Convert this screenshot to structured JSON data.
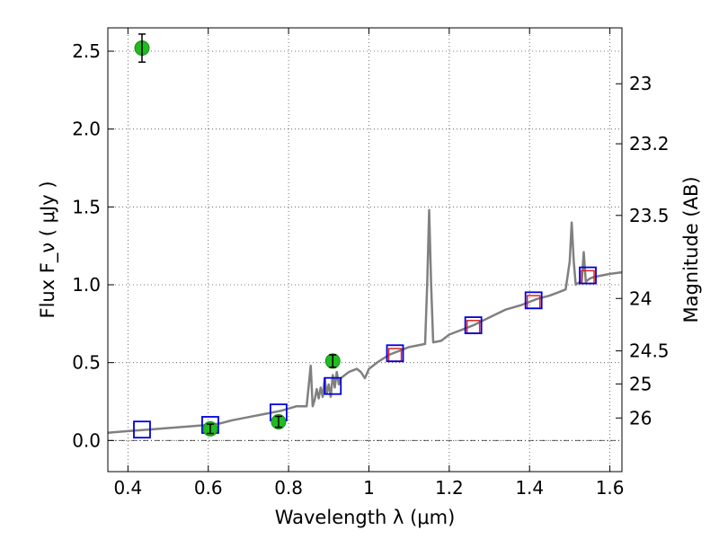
{
  "chart_data": {
    "type": "scatter",
    "xlabel": "Wavelength  λ (μm)",
    "ylabel": "Flux  F_ν  ( μJy )",
    "ylabel_right": "Magnitude (AB)",
    "xlim": [
      0.35,
      1.63
    ],
    "ylim": [
      -0.2,
      2.65
    ],
    "x_ticks": [
      0.4,
      0.6,
      0.8,
      1.0,
      1.2,
      1.4,
      1.6
    ],
    "x_tick_labels": [
      "0.4",
      "0.6",
      "0.8",
      "1",
      "1.2",
      "1.4",
      "1.6"
    ],
    "y_ticks": [
      0.0,
      0.5,
      1.0,
      1.5,
      2.0,
      2.5
    ],
    "y_tick_labels": [
      "0.0",
      "0.5",
      "1.0",
      "1.5",
      "2.0",
      "2.5"
    ],
    "mag_ticks": [
      23,
      23.2,
      23.5,
      24,
      24.5,
      25,
      26
    ],
    "mag_tick_labels": [
      "23",
      "23.2",
      "23.5",
      "24",
      "24.5",
      "25",
      "26"
    ],
    "grid": true,
    "colors": {
      "model": "#808080",
      "observed_points": "#22bb22",
      "model_photometry": "#0000dd",
      "synthetic_photometry": "#dd2222"
    },
    "series": [
      {
        "kind": "line",
        "x": [
          0.35,
          0.4,
          0.45,
          0.5,
          0.55,
          0.6,
          0.63,
          0.66,
          0.7,
          0.74,
          0.78,
          0.82,
          0.845,
          0.855,
          0.86,
          0.865,
          0.87,
          0.875,
          0.88,
          0.885,
          0.89,
          0.895,
          0.9,
          0.905,
          0.91,
          0.915,
          0.92,
          0.925,
          0.93,
          0.94,
          0.95,
          0.96,
          0.97,
          0.98,
          0.99,
          1.0,
          1.02,
          1.05,
          1.08,
          1.1,
          1.12,
          1.14,
          1.145,
          1.15,
          1.155,
          1.16,
          1.18,
          1.2,
          1.23,
          1.26,
          1.3,
          1.34,
          1.38,
          1.42,
          1.45,
          1.47,
          1.49,
          1.5,
          1.505,
          1.51,
          1.515,
          1.52,
          1.53,
          1.535,
          1.54,
          1.545,
          1.55,
          1.56,
          1.58,
          1.6,
          1.63
        ],
        "y": [
          0.05,
          0.06,
          0.07,
          0.08,
          0.09,
          0.1,
          0.11,
          0.13,
          0.15,
          0.17,
          0.19,
          0.22,
          0.22,
          0.48,
          0.22,
          0.26,
          0.33,
          0.27,
          0.34,
          0.28,
          0.4,
          0.3,
          0.36,
          0.28,
          0.42,
          0.34,
          0.44,
          0.36,
          0.4,
          0.42,
          0.44,
          0.45,
          0.46,
          0.44,
          0.4,
          0.46,
          0.5,
          0.55,
          0.58,
          0.6,
          0.61,
          0.62,
          1.0,
          1.48,
          1.0,
          0.63,
          0.64,
          0.68,
          0.71,
          0.74,
          0.79,
          0.84,
          0.87,
          0.91,
          0.93,
          0.95,
          0.97,
          1.15,
          1.4,
          1.15,
          1.0,
          1.01,
          1.02,
          1.21,
          1.02,
          1.03,
          1.04,
          1.05,
          1.06,
          1.07,
          1.08
        ]
      },
      {
        "kind": "errorbar",
        "x": [
          0.435,
          0.605,
          0.775,
          0.91
        ],
        "y": [
          2.52,
          0.075,
          0.12,
          0.51
        ],
        "err": [
          0.09,
          0.03,
          0.035,
          0.04
        ]
      },
      {
        "kind": "open-square",
        "x": [
          0.435,
          0.605,
          0.775,
          0.91,
          1.065,
          1.26,
          1.41,
          1.545
        ],
        "y": [
          0.07,
          0.1,
          0.18,
          0.35,
          0.56,
          0.74,
          0.9,
          1.06
        ]
      },
      {
        "kind": "open-square",
        "x": [
          1.065,
          1.26,
          1.41,
          1.545
        ],
        "y": [
          0.55,
          0.73,
          0.89,
          1.05
        ]
      }
    ]
  }
}
